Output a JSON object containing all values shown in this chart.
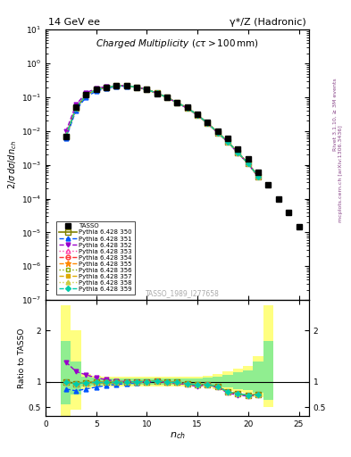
{
  "title_left": "14 GeV ee",
  "title_right": "γ*/Z (Hadronic)",
  "plot_title": "Charged Multiplicity",
  "plot_subtitle": "(cτ > 100mm)",
  "ylabel_main": "2/σ dσ/dn_{ch}",
  "ylabel_ratio": "Ratio to TASSO",
  "xlabel": "n_{ch}",
  "watermark": "TASSO_1989_I277658",
  "right_label_top": "Rivet 3.1.10, ≥ 3M events",
  "right_label_bot": "mcplots.cern.ch [arXiv:1306.3436]",
  "tasso_x": [
    2,
    3,
    4,
    5,
    6,
    7,
    8,
    9,
    10,
    11,
    12,
    13,
    14,
    15,
    16,
    17,
    18,
    19,
    20,
    21,
    22,
    23,
    24,
    25
  ],
  "tasso_y": [
    0.007,
    0.05,
    0.12,
    0.17,
    0.2,
    0.22,
    0.22,
    0.2,
    0.17,
    0.13,
    0.1,
    0.07,
    0.05,
    0.032,
    0.018,
    0.01,
    0.006,
    0.003,
    0.0015,
    0.0006,
    0.00025,
    0.0001,
    4e-05,
    1.5e-05
  ],
  "mc_x": [
    2,
    3,
    4,
    5,
    6,
    7,
    8,
    9,
    10,
    11,
    12,
    13,
    14,
    15,
    16,
    17,
    18,
    19,
    20,
    21
  ],
  "mc_350_y": [
    0.007,
    0.048,
    0.118,
    0.168,
    0.197,
    0.217,
    0.218,
    0.2,
    0.17,
    0.132,
    0.099,
    0.069,
    0.048,
    0.03,
    0.017,
    0.009,
    0.0048,
    0.0023,
    0.0011,
    0.00045
  ],
  "mc_351_y": [
    0.006,
    0.041,
    0.103,
    0.152,
    0.185,
    0.208,
    0.212,
    0.196,
    0.168,
    0.132,
    0.099,
    0.069,
    0.048,
    0.03,
    0.017,
    0.009,
    0.0048,
    0.0023,
    0.0011,
    0.00045
  ],
  "mc_352_y": [
    0.0097,
    0.06,
    0.136,
    0.183,
    0.208,
    0.222,
    0.22,
    0.2,
    0.169,
    0.131,
    0.098,
    0.068,
    0.047,
    0.029,
    0.017,
    0.0088,
    0.0047,
    0.0022,
    0.00108,
    0.00044
  ],
  "mc_353_y": [
    0.007,
    0.048,
    0.118,
    0.168,
    0.197,
    0.217,
    0.218,
    0.2,
    0.17,
    0.132,
    0.099,
    0.069,
    0.048,
    0.03,
    0.017,
    0.009,
    0.0048,
    0.0023,
    0.0011,
    0.00045
  ],
  "mc_354_y": [
    0.007,
    0.048,
    0.118,
    0.168,
    0.197,
    0.217,
    0.218,
    0.2,
    0.17,
    0.132,
    0.099,
    0.069,
    0.048,
    0.03,
    0.017,
    0.009,
    0.0048,
    0.0023,
    0.0011,
    0.00045
  ],
  "mc_355_y": [
    0.007,
    0.048,
    0.118,
    0.168,
    0.197,
    0.217,
    0.218,
    0.2,
    0.17,
    0.132,
    0.099,
    0.069,
    0.048,
    0.03,
    0.017,
    0.009,
    0.0048,
    0.0023,
    0.0011,
    0.00045
  ],
  "mc_356_y": [
    0.007,
    0.048,
    0.118,
    0.168,
    0.197,
    0.217,
    0.218,
    0.2,
    0.17,
    0.132,
    0.099,
    0.069,
    0.048,
    0.03,
    0.017,
    0.009,
    0.0048,
    0.0023,
    0.0011,
    0.00045
  ],
  "mc_357_y": [
    0.007,
    0.048,
    0.118,
    0.168,
    0.197,
    0.217,
    0.218,
    0.2,
    0.17,
    0.132,
    0.099,
    0.069,
    0.048,
    0.03,
    0.017,
    0.009,
    0.0048,
    0.0023,
    0.0011,
    0.00045
  ],
  "mc_358_y": [
    0.007,
    0.048,
    0.118,
    0.168,
    0.197,
    0.217,
    0.218,
    0.2,
    0.17,
    0.132,
    0.099,
    0.069,
    0.048,
    0.03,
    0.017,
    0.009,
    0.0048,
    0.0023,
    0.0011,
    0.00045
  ],
  "mc_359_y": [
    0.007,
    0.048,
    0.118,
    0.168,
    0.197,
    0.217,
    0.218,
    0.2,
    0.17,
    0.132,
    0.099,
    0.069,
    0.048,
    0.03,
    0.017,
    0.009,
    0.0048,
    0.0023,
    0.0011,
    0.00045
  ],
  "band_edges": [
    1.5,
    2.5,
    3.5,
    4.5,
    5.5,
    6.5,
    7.5,
    8.5,
    9.5,
    10.5,
    11.5,
    12.5,
    13.5,
    14.5,
    15.5,
    16.5,
    17.5,
    18.5,
    19.5,
    20.5,
    21.5,
    22.5
  ],
  "yellow_lo": [
    0.25,
    0.45,
    0.85,
    0.88,
    0.9,
    0.9,
    0.9,
    0.9,
    0.9,
    0.9,
    0.9,
    0.9,
    0.9,
    0.9,
    0.88,
    0.85,
    0.82,
    0.8,
    0.78,
    0.7,
    0.5
  ],
  "yellow_hi": [
    2.5,
    2.0,
    1.15,
    1.12,
    1.1,
    1.1,
    1.1,
    1.1,
    1.1,
    1.1,
    1.1,
    1.1,
    1.1,
    1.1,
    1.12,
    1.15,
    1.2,
    1.25,
    1.3,
    1.5,
    2.5
  ],
  "green_lo": [
    0.55,
    0.75,
    0.9,
    0.92,
    0.94,
    0.94,
    0.94,
    0.94,
    0.94,
    0.94,
    0.94,
    0.94,
    0.94,
    0.94,
    0.92,
    0.9,
    0.88,
    0.86,
    0.84,
    0.78,
    0.65
  ],
  "green_hi": [
    1.8,
    1.4,
    1.1,
    1.08,
    1.06,
    1.06,
    1.06,
    1.06,
    1.06,
    1.06,
    1.06,
    1.06,
    1.06,
    1.06,
    1.08,
    1.1,
    1.14,
    1.18,
    1.22,
    1.4,
    1.8
  ],
  "tune_styles": {
    "350": {
      "color": "#808000",
      "marker": "s",
      "ls": "-",
      "filled": false,
      "lw": 1.2,
      "ms": 4
    },
    "351": {
      "color": "#0055ff",
      "marker": "^",
      "ls": "--",
      "filled": true,
      "lw": 1.0,
      "ms": 3.5
    },
    "352": {
      "color": "#9900cc",
      "marker": "v",
      "ls": "--",
      "filled": true,
      "lw": 1.0,
      "ms": 3.5
    },
    "353": {
      "color": "#ff44aa",
      "marker": "^",
      "ls": ":",
      "filled": false,
      "lw": 1.0,
      "ms": 3.5
    },
    "354": {
      "color": "#ff3333",
      "marker": "o",
      "ls": "--",
      "filled": false,
      "lw": 1.0,
      "ms": 3.5
    },
    "355": {
      "color": "#ff8800",
      "marker": "*",
      "ls": "--",
      "filled": true,
      "lw": 1.0,
      "ms": 4.5
    },
    "356": {
      "color": "#88aa00",
      "marker": "s",
      "ls": ":",
      "filled": false,
      "lw": 1.0,
      "ms": 3.5
    },
    "357": {
      "color": "#ddaa00",
      "marker": "s",
      "ls": "--",
      "filled": true,
      "lw": 1.0,
      "ms": 3.5
    },
    "358": {
      "color": "#cccc44",
      "marker": "^",
      "ls": ":",
      "filled": true,
      "lw": 1.0,
      "ms": 3.5
    },
    "359": {
      "color": "#00ccaa",
      "marker": "D",
      "ls": "--",
      "filled": true,
      "lw": 1.0,
      "ms": 3.0
    }
  },
  "ylim_main": [
    1e-07,
    10
  ],
  "ylim_ratio": [
    0.33,
    2.6
  ],
  "xlim": [
    0,
    26
  ],
  "yticks_ratio": [
    0.5,
    1.0,
    2.0
  ]
}
